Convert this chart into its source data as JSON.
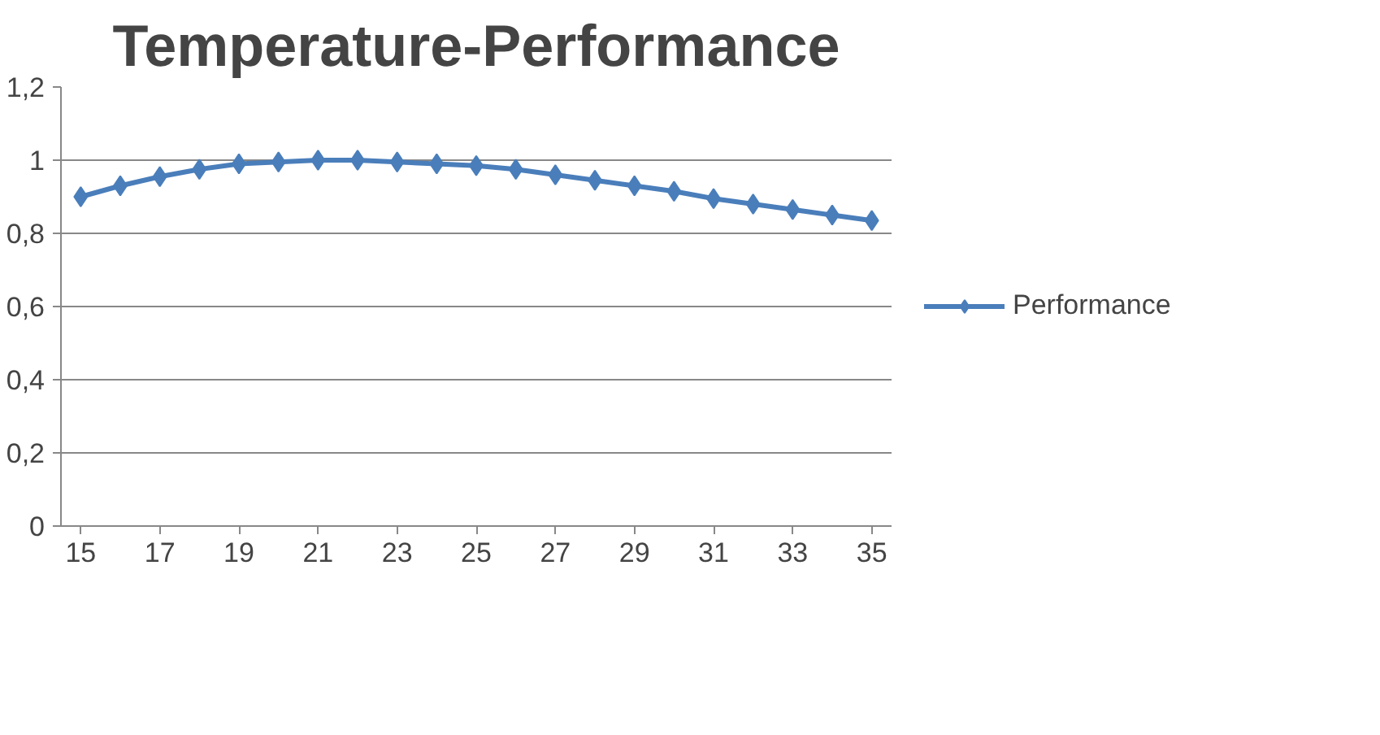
{
  "chart_data": {
    "type": "line",
    "title": "Temperature-Performance",
    "x": [
      15,
      16,
      17,
      18,
      19,
      20,
      21,
      22,
      23,
      24,
      25,
      26,
      27,
      28,
      29,
      30,
      31,
      32,
      33,
      34,
      35
    ],
    "series": [
      {
        "name": "Performance",
        "color": "#4a7ebb",
        "values": [
          0.9,
          0.93,
          0.955,
          0.975,
          0.99,
          0.995,
          1.0,
          1.0,
          0.995,
          0.99,
          0.985,
          0.975,
          0.96,
          0.945,
          0.93,
          0.915,
          0.895,
          0.88,
          0.865,
          0.85,
          0.835
        ]
      }
    ],
    "xlim": [
      14.5,
      35.5
    ],
    "xticks": [
      15,
      17,
      19,
      21,
      23,
      25,
      27,
      29,
      31,
      33,
      35
    ],
    "ylim": [
      0,
      1.2
    ],
    "yticks": [
      0,
      {
        "value": 0.2,
        "label": "0,2"
      },
      {
        "value": 0.4,
        "label": "0,4"
      },
      {
        "value": 0.6,
        "label": "0,6"
      },
      {
        "value": 0.8,
        "label": "0,8"
      },
      1,
      {
        "value": 1.2,
        "label": "1,2"
      }
    ],
    "grid": "y",
    "legend": "right",
    "marker": "diamond",
    "line_style": "solid"
  }
}
